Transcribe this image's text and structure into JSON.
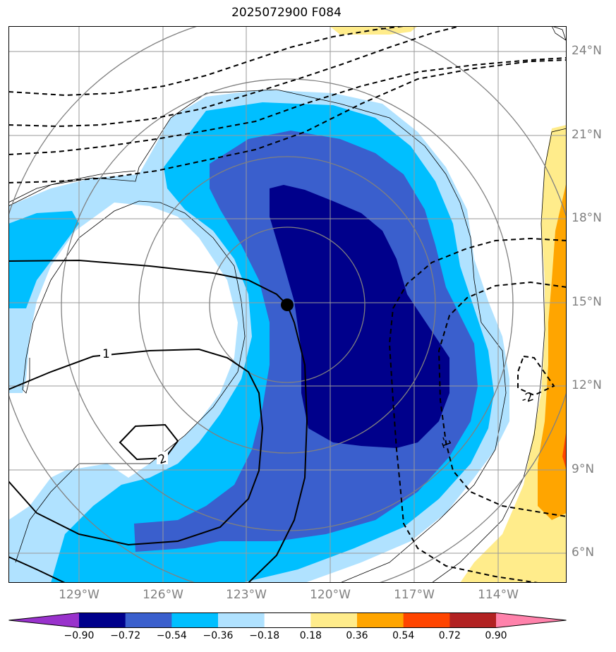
{
  "title": "2025072900 F084",
  "lat_labels": [
    "24°N",
    "21°N",
    "18°N",
    "15°N",
    "12°N",
    "9°N",
    "6°N"
  ],
  "lon_labels": [
    "129°W",
    "126°W",
    "123°W",
    "120°W",
    "117°W",
    "114°W"
  ],
  "colorbar": {
    "ticks": [
      "−0.90",
      "−0.72",
      "−0.54",
      "−0.36",
      "−0.18",
      "0.18",
      "0.36",
      "0.54",
      "0.72",
      "0.90"
    ],
    "colors": [
      "#9932CC",
      "#00008B",
      "#3A5FCD",
      "#00BFFF",
      "#B0E2FF",
      "#FFFFFF",
      "#FFEC8B",
      "#FFA500",
      "#FF4500",
      "#B22222",
      "#FF82AB"
    ]
  },
  "contour_labels": {
    "solid_1": "1",
    "solid_2": "2",
    "dashed_1": "-1",
    "dashed_2": "-2"
  }
}
